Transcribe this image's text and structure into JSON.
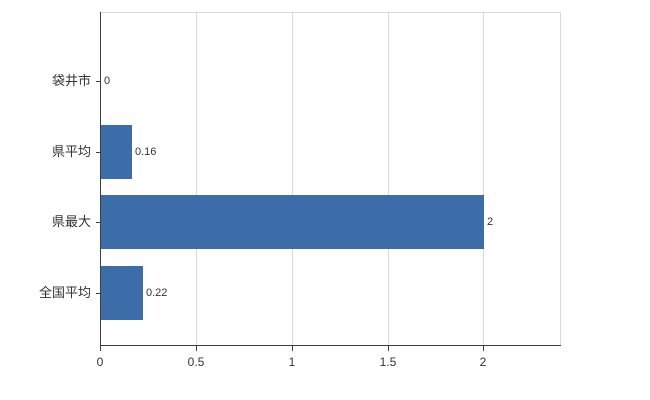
{
  "chart_data": {
    "type": "bar",
    "orientation": "horizontal",
    "title": "",
    "xlabel": "",
    "ylabel": "",
    "categories": [
      "袋井市",
      "県平均",
      "県最大",
      "全国平均"
    ],
    "values": [
      0,
      0.16,
      2,
      0.22
    ],
    "value_labels": [
      "0",
      "0.16",
      "2",
      "0.22"
    ],
    "x_ticks": [
      0,
      0.5,
      1,
      1.5,
      2
    ],
    "x_tick_labels": [
      "0",
      "0.5",
      "1",
      "1.5",
      "2"
    ],
    "xlim": [
      0,
      2.4
    ],
    "grid": true,
    "legend": "none",
    "bar_color": "#3d6da8",
    "grid_color": "#d9d9d9",
    "axis_color": "#404040",
    "text_color": "#333333"
  }
}
